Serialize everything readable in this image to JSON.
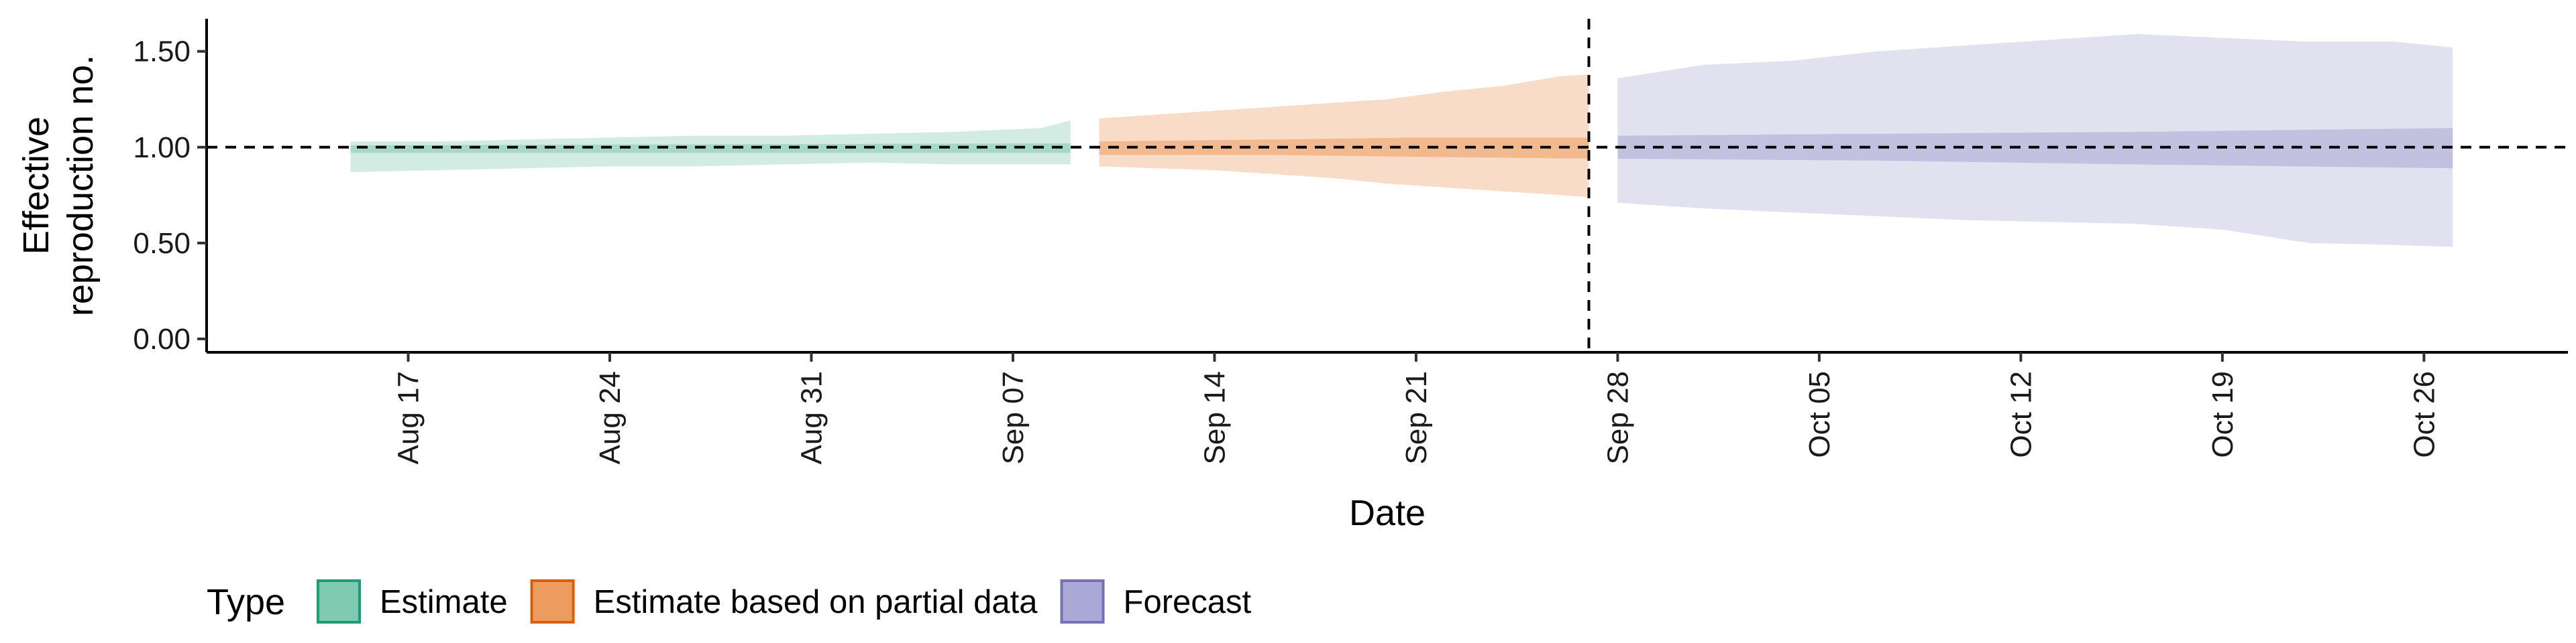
{
  "chart_data": {
    "type": "area",
    "xlabel": "Date",
    "ylabel_lines": [
      "Effective",
      "reproduction no."
    ],
    "x_ticks": [
      "2020-08-17",
      "2020-08-24",
      "2020-08-31",
      "2020-09-07",
      "2020-09-14",
      "2020-09-21",
      "2020-09-28",
      "2020-10-05",
      "2020-10-12",
      "2020-10-19",
      "2020-10-26"
    ],
    "x_tick_labels": [
      "Aug 17",
      "Aug 24",
      "Aug 31",
      "Sep 07",
      "Sep 14",
      "Sep 21",
      "Sep 28",
      "Oct 05",
      "Oct 12",
      "Oct 19",
      "Oct 26"
    ],
    "xlim": [
      "2020-08-10",
      "2020-10-31"
    ],
    "y_ticks": [
      0.0,
      0.5,
      1.0,
      1.5
    ],
    "y_tick_labels": [
      "0.00",
      "0.50",
      "1.00",
      "1.50"
    ],
    "ylim": [
      -0.07,
      1.67
    ],
    "reference_line": 1.0,
    "forecast_date_line": "2020-09-27",
    "legend_title": "Type",
    "legend_position": "bottom",
    "series": [
      {
        "name": "Estimate",
        "color": "#1b9e77",
        "fill": "#7fc9b1",
        "outer": [
          [
            "2020-08-15",
            0.87,
            1.03
          ],
          [
            "2020-08-18",
            0.88,
            1.03
          ],
          [
            "2020-08-21",
            0.89,
            1.04
          ],
          [
            "2020-08-24",
            0.9,
            1.05
          ],
          [
            "2020-08-27",
            0.9,
            1.06
          ],
          [
            "2020-08-30",
            0.91,
            1.06
          ],
          [
            "2020-09-02",
            0.92,
            1.07
          ],
          [
            "2020-09-05",
            0.91,
            1.08
          ],
          [
            "2020-09-08",
            0.91,
            1.1
          ],
          [
            "2020-09-09",
            0.91,
            1.14
          ]
        ],
        "inner": [
          [
            "2020-08-15",
            0.97,
            1.01
          ],
          [
            "2020-09-09",
            0.97,
            1.02
          ]
        ]
      },
      {
        "name": "Estimate based on partial data",
        "color": "#d95f02",
        "fill": "#ec9c5f",
        "outer": [
          [
            "2020-09-10",
            0.9,
            1.15
          ],
          [
            "2020-09-12",
            0.89,
            1.17
          ],
          [
            "2020-09-14",
            0.88,
            1.19
          ],
          [
            "2020-09-16",
            0.86,
            1.21
          ],
          [
            "2020-09-18",
            0.84,
            1.23
          ],
          [
            "2020-09-20",
            0.81,
            1.25
          ],
          [
            "2020-09-22",
            0.79,
            1.29
          ],
          [
            "2020-09-24",
            0.77,
            1.32
          ],
          [
            "2020-09-26",
            0.75,
            1.37
          ],
          [
            "2020-09-27",
            0.74,
            1.38
          ]
        ],
        "inner": [
          [
            "2020-09-10",
            0.96,
            1.03
          ],
          [
            "2020-09-16",
            0.96,
            1.04
          ],
          [
            "2020-09-21",
            0.95,
            1.05
          ],
          [
            "2020-09-27",
            0.94,
            1.05
          ]
        ]
      },
      {
        "name": "Forecast",
        "color": "#7570b3",
        "fill": "#aaa8d4",
        "outer": [
          [
            "2020-09-28",
            0.71,
            1.36
          ],
          [
            "2020-10-01",
            0.68,
            1.43
          ],
          [
            "2020-10-04",
            0.66,
            1.45
          ],
          [
            "2020-10-07",
            0.64,
            1.5
          ],
          [
            "2020-10-10",
            0.62,
            1.53
          ],
          [
            "2020-10-13",
            0.61,
            1.56
          ],
          [
            "2020-10-16",
            0.6,
            1.59
          ],
          [
            "2020-10-19",
            0.57,
            1.57
          ],
          [
            "2020-10-22",
            0.5,
            1.55
          ],
          [
            "2020-10-25",
            0.49,
            1.55
          ],
          [
            "2020-10-27",
            0.48,
            1.52
          ]
        ],
        "inner": [
          [
            "2020-09-28",
            0.94,
            1.06
          ],
          [
            "2020-10-07",
            0.93,
            1.07
          ],
          [
            "2020-10-16",
            0.91,
            1.08
          ],
          [
            "2020-10-27",
            0.89,
            1.1
          ]
        ]
      }
    ]
  }
}
